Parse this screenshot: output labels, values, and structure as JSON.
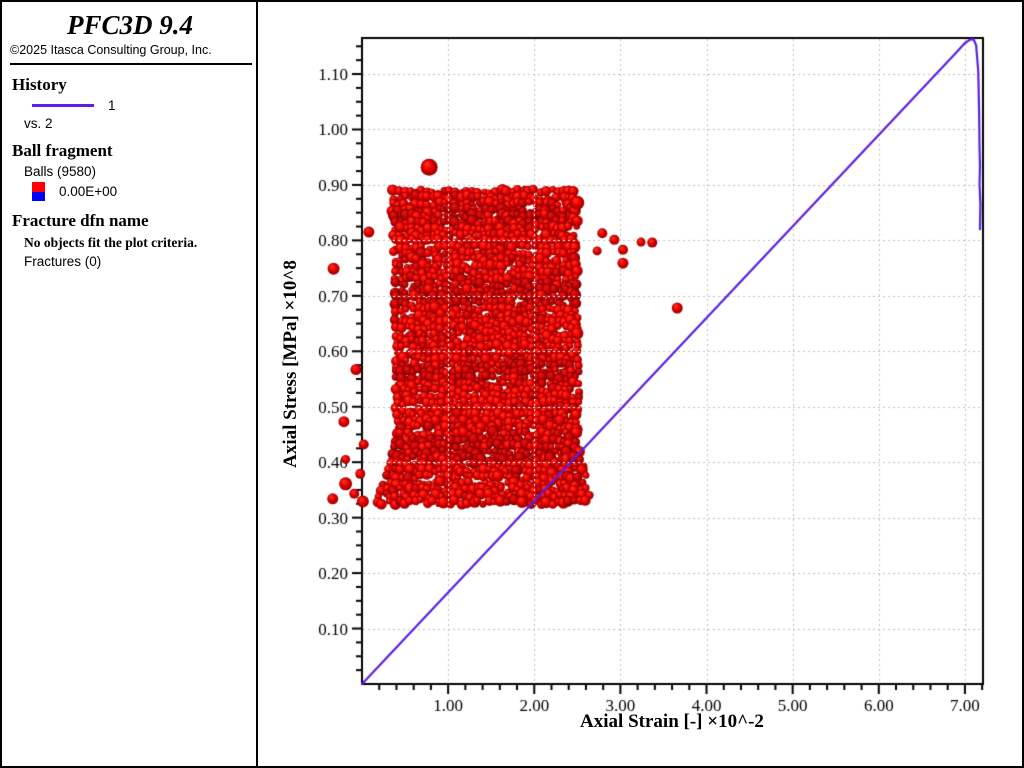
{
  "window": {
    "bg": "#ffffff",
    "border_color": "#000000"
  },
  "sidebar": {
    "title": "PFC3D 9.4",
    "copyright": "©2025 Itasca Consulting Group, Inc.",
    "history": {
      "heading": "History",
      "series_label": "1",
      "vs_label": "vs. 2",
      "line_color": "#5c1fe0"
    },
    "ball_fragment": {
      "heading": "Ball fragment",
      "count_label": "Balls (9580)",
      "value_label": "0.00E+00",
      "swatch_top_color": "#ff0000",
      "swatch_bottom_color": "#0000ff"
    },
    "fracture": {
      "heading": "Fracture dfn name",
      "message": "No objects fit the plot criteria.",
      "count_label": "Fractures (0)"
    }
  },
  "chart_data": {
    "type": "line",
    "title": "",
    "xlabel": "Axial Strain [-] ×10^-2",
    "ylabel": "Axial Stress [MPa] ×10^8",
    "xlim": [
      0,
      7.21
    ],
    "ylim": [
      0,
      1.165
    ],
    "x_major_ticks": [
      1,
      2,
      3,
      4,
      5,
      6,
      7
    ],
    "x_tick_labels": [
      "1.00",
      "2.00",
      "3.00",
      "4.00",
      "5.00",
      "6.00",
      "7.00"
    ],
    "x_minor_step": 0.2,
    "y_major_ticks": [
      0.1,
      0.2,
      0.3,
      0.4,
      0.5,
      0.6,
      0.7,
      0.8,
      0.9,
      1.0,
      1.1
    ],
    "y_tick_labels": [
      "0.10",
      "0.20",
      "0.30",
      "0.40",
      "0.50",
      "0.60",
      "0.70",
      "0.80",
      "0.90",
      "1.00",
      "1.10"
    ],
    "y_minor_step": 0.025,
    "grid": "dotted-major",
    "grid_color": "#c0c0c0",
    "legend_position": "left-panel",
    "series": [
      {
        "name": "history 1 vs. 2",
        "color": "#5c1fe0",
        "points": [
          [
            0,
            0
          ],
          [
            6.9,
            1.139
          ],
          [
            7.0,
            1.156
          ],
          [
            7.06,
            1.162
          ],
          [
            7.1,
            1.163
          ],
          [
            7.13,
            1.152
          ],
          [
            7.155,
            1.105
          ],
          [
            7.165,
            1.03
          ],
          [
            7.17,
            0.965
          ],
          [
            7.175,
            0.935
          ],
          [
            7.17,
            0.9
          ],
          [
            7.18,
            0.865
          ],
          [
            7.175,
            0.82
          ]
        ],
        "peak": [
          7.1,
          1.163
        ]
      }
    ],
    "ball_assembly": {
      "description": "red sphere specimen overlaid on plot",
      "balls_total": 9580,
      "color": "#e60000",
      "dark_color": "#b30000",
      "top": 0.888,
      "bottom": 0.323,
      "left_top": 0.37,
      "right_top": 2.47,
      "left_mid": 0.41,
      "right_mid": 2.51,
      "left_bottom": 0.16,
      "right_bottom": 2.66,
      "flare_start": 0.7,
      "dark_bands_y": [
        0.845,
        0.705,
        0.565,
        0.425
      ],
      "seed": 1337
    },
    "scattered_balls": [
      {
        "x": 0.78,
        "y": 0.932,
        "r": 8.5
      },
      {
        "x": 0.08,
        "y": 0.815,
        "r": 5.5
      },
      {
        "x": -0.33,
        "y": 0.749,
        "r": 6
      },
      {
        "x": 2.5,
        "y": 0.868,
        "r": 7
      },
      {
        "x": 2.5,
        "y": 0.835,
        "r": 5.5
      },
      {
        "x": 2.79,
        "y": 0.813,
        "r": 5
      },
      {
        "x": 2.93,
        "y": 0.801,
        "r": 5
      },
      {
        "x": 2.73,
        "y": 0.781,
        "r": 4.5
      },
      {
        "x": 3.03,
        "y": 0.783,
        "r": 5
      },
      {
        "x": 3.24,
        "y": 0.797,
        "r": 4.5
      },
      {
        "x": 3.37,
        "y": 0.796,
        "r": 5
      },
      {
        "x": 3.03,
        "y": 0.759,
        "r": 5.5
      },
      {
        "x": 3.66,
        "y": 0.678,
        "r": 5.5
      },
      {
        "x": -0.07,
        "y": 0.567,
        "r": 5.5
      },
      {
        "x": -0.21,
        "y": 0.473,
        "r": 5.5
      },
      {
        "x": -0.19,
        "y": 0.405,
        "r": 4.5
      },
      {
        "x": 0.02,
        "y": 0.432,
        "r": 5
      },
      {
        "x": -0.02,
        "y": 0.379,
        "r": 5
      },
      {
        "x": -0.19,
        "y": 0.361,
        "r": 6.5
      },
      {
        "x": -0.34,
        "y": 0.334,
        "r": 5.5
      },
      {
        "x": -0.09,
        "y": 0.343,
        "r": 5
      },
      {
        "x": 0.01,
        "y": 0.329,
        "r": 6
      }
    ]
  }
}
